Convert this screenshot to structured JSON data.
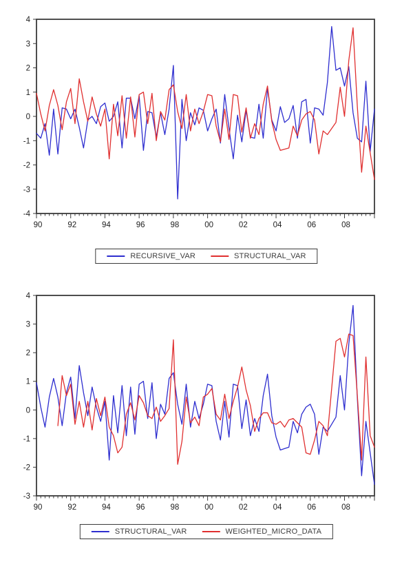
{
  "chart_data": [
    {
      "type": "line",
      "title": "",
      "xlabel": "",
      "ylabel": "",
      "x_start": "1990Q1",
      "x_frequency": "quarterly",
      "x_tick_labels": [
        "90",
        "92",
        "94",
        "96",
        "98",
        "00",
        "02",
        "04",
        "06",
        "08"
      ],
      "ylim": [
        -4,
        4
      ],
      "yticks": [
        4,
        3,
        2,
        1,
        0,
        -1,
        -2,
        -3,
        -4
      ],
      "grid": false,
      "legend_position": "bottom-outside",
      "series": [
        {
          "name": "RECURSIVE_VAR",
          "color": "#2d2dcf",
          "values": [
            -0.7,
            -0.9,
            -0.3,
            -1.6,
            0.3,
            -1.55,
            0.35,
            0.3,
            -0.1,
            0.3,
            -0.45,
            -1.3,
            -0.15,
            0.0,
            -0.3,
            0.4,
            0.55,
            -0.2,
            0.0,
            0.6,
            -1.3,
            0.75,
            0.75,
            -0.1,
            0.85,
            -1.4,
            0.2,
            0.15,
            -0.85,
            0.15,
            -0.75,
            0.3,
            2.1,
            -3.4,
            0.7,
            -1.0,
            0.15,
            -0.35,
            0.35,
            0.25,
            -0.6,
            -0.1,
            0.3,
            -1.1,
            0.9,
            -0.5,
            -1.75,
            0.05,
            -1.05,
            0.25,
            -0.85,
            -0.9,
            0.5,
            -0.9,
            1.15,
            -0.15,
            -0.6,
            0.4,
            -0.25,
            -0.1,
            0.45,
            -0.9,
            0.6,
            0.7,
            -1.1,
            0.35,
            0.3,
            0.05,
            1.4,
            3.7,
            1.9,
            2.0,
            1.25,
            2.05,
            0.15,
            -0.9,
            -1.05,
            1.45,
            -1.45,
            0.3
          ]
        },
        {
          "name": "STRUCTURAL_VAR",
          "color": "#e02f2f",
          "values": [
            0.95,
            0.1,
            -0.6,
            0.45,
            1.1,
            0.45,
            -0.55,
            0.6,
            1.15,
            -0.3,
            1.55,
            0.6,
            -0.2,
            0.8,
            0.1,
            -0.4,
            0.3,
            -1.75,
            0.5,
            -0.8,
            0.85,
            -0.9,
            0.8,
            -0.85,
            0.9,
            1.0,
            -0.3,
            0.95,
            -1.0,
            0.2,
            -0.15,
            1.1,
            1.3,
            0.2,
            -0.5,
            0.9,
            -0.6,
            0.3,
            -0.3,
            0.2,
            0.9,
            0.85,
            -0.4,
            -1.05,
            0.3,
            -0.95,
            0.9,
            0.85,
            -0.65,
            0.35,
            -0.9,
            -0.3,
            -0.75,
            0.5,
            1.25,
            -0.2,
            -0.95,
            -1.4,
            -1.35,
            -1.3,
            -0.4,
            -0.8,
            -0.15,
            0.1,
            0.2,
            -0.15,
            -1.55,
            -0.6,
            -0.75,
            -0.5,
            -0.25,
            1.2,
            0.0,
            2.3,
            3.65,
            0.4,
            -2.3,
            -0.4,
            -1.5,
            -2.6
          ]
        }
      ]
    },
    {
      "type": "line",
      "title": "",
      "xlabel": "",
      "ylabel": "",
      "x_start": "1990Q1",
      "x_frequency": "quarterly",
      "x_tick_labels": [
        "90",
        "92",
        "94",
        "96",
        "98",
        "00",
        "02",
        "04",
        "06",
        "08"
      ],
      "ylim": [
        -3,
        4
      ],
      "yticks": [
        4,
        3,
        2,
        1,
        0,
        -1,
        -2,
        -3
      ],
      "grid": false,
      "legend_position": "bottom-outside",
      "series": [
        {
          "name": "STRUCTURAL_VAR",
          "color": "#2d2dcf",
          "values": [
            0.95,
            0.1,
            -0.6,
            0.45,
            1.1,
            0.45,
            -0.55,
            0.6,
            1.15,
            -0.3,
            1.55,
            0.6,
            -0.2,
            0.8,
            0.1,
            -0.4,
            0.3,
            -1.75,
            0.5,
            -0.8,
            0.85,
            -0.9,
            0.8,
            -0.85,
            0.9,
            1.0,
            -0.3,
            0.95,
            -1.0,
            0.2,
            -0.15,
            1.1,
            1.3,
            0.2,
            -0.5,
            0.9,
            -0.6,
            0.3,
            -0.3,
            0.2,
            0.9,
            0.85,
            -0.4,
            -1.05,
            0.3,
            -0.95,
            0.9,
            0.85,
            -0.65,
            0.35,
            -0.9,
            -0.3,
            -0.75,
            0.5,
            1.25,
            -0.2,
            -0.95,
            -1.4,
            -1.35,
            -1.3,
            -0.4,
            -0.8,
            -0.15,
            0.1,
            0.2,
            -0.15,
            -1.55,
            -0.6,
            -0.75,
            -0.5,
            -0.25,
            1.2,
            0.0,
            2.3,
            3.65,
            0.4,
            -2.3,
            -0.4,
            -1.5,
            -2.6
          ]
        },
        {
          "name": "WEIGHTED_MICRO_DATA",
          "color": "#e02f2f",
          "values": [
            null,
            null,
            null,
            null,
            null,
            -0.55,
            1.2,
            0.5,
            0.9,
            -0.5,
            0.3,
            -0.6,
            0.3,
            -0.7,
            0.4,
            -0.2,
            0.45,
            -0.6,
            -0.9,
            -1.5,
            -1.3,
            -0.15,
            0.25,
            -0.35,
            0.5,
            0.25,
            -0.2,
            -0.3,
            0.1,
            -0.4,
            -0.2,
            0.05,
            2.45,
            -1.9,
            -1.1,
            0.45,
            -0.45,
            -0.25,
            -0.55,
            0.45,
            0.55,
            0.75,
            -0.15,
            -0.35,
            0.55,
            -0.3,
            0.3,
            0.8,
            1.5,
            0.7,
            0.15,
            -0.75,
            -0.3,
            -0.1,
            -0.1,
            -0.45,
            -0.5,
            -0.4,
            -0.6,
            -0.35,
            -0.3,
            -0.45,
            -0.6,
            -1.5,
            -1.55,
            -1.05,
            -0.4,
            -0.55,
            -0.9,
            0.75,
            2.4,
            2.5,
            1.85,
            2.65,
            2.6,
            0.5,
            -1.75,
            1.85,
            -0.9,
            -1.3
          ]
        }
      ]
    }
  ]
}
